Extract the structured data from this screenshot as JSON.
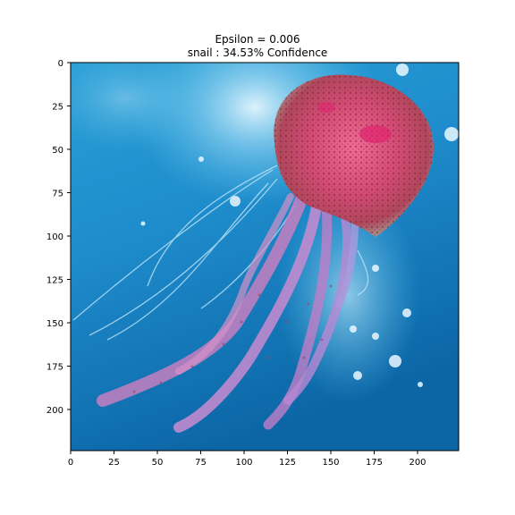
{
  "figure": {
    "title_line_1": "Epsilon = 0.006",
    "title_line_2": "snail : 34.53% Confidence"
  },
  "axes": {
    "x_ticks": [
      "0",
      "25",
      "50",
      "75",
      "100",
      "125",
      "150",
      "175",
      "200"
    ],
    "y_ticks": [
      "0",
      "25",
      "50",
      "75",
      "100",
      "125",
      "150",
      "175",
      "200"
    ]
  },
  "image": {
    "subject": "purple-striped jellyfish underwater (adversarial example)",
    "colors": {
      "water_light": "#46b6e2",
      "water_dark": "#0a5f9c",
      "bell_pink": "#e0457a",
      "bell_brown": "#8a3a1c",
      "tentacle": "#c780c4"
    }
  }
}
